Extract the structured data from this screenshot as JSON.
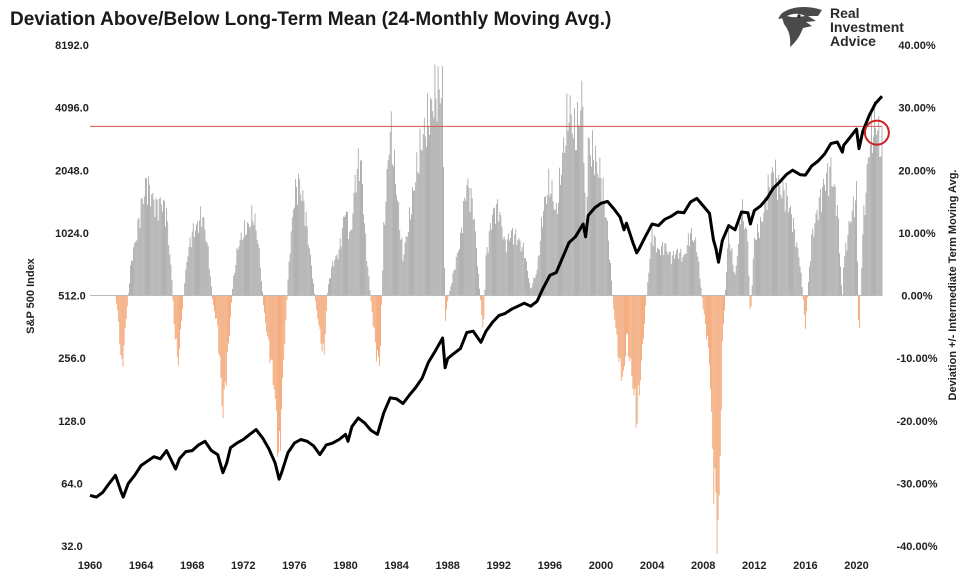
{
  "title": "Deviation Above/Below Long-Term Mean (24-Monthly Moving Avg.)",
  "logo": {
    "lines": [
      "Real",
      "Investment",
      "Advice"
    ],
    "icon": "eagle-head-icon"
  },
  "chart_data": {
    "type": "bar+line",
    "x_range": [
      1960,
      2022
    ],
    "x_ticks": [
      "1960",
      "1964",
      "1968",
      "1972",
      "1976",
      "1980",
      "1984",
      "1988",
      "1992",
      "1996",
      "2000",
      "2004",
      "2008",
      "2012",
      "2016",
      "2020"
    ],
    "left_axis": {
      "label": "S&P 500 Index",
      "scale": "log2",
      "range": [
        32,
        8192
      ],
      "ticks": [
        "8192.0",
        "4096.0",
        "2048.0",
        "1024.0",
        "512.0",
        "256.0",
        "128.0",
        "64.0",
        "32.0"
      ]
    },
    "right_axis": {
      "label": "Deviation +/- Intermediate Term Moving Avg.",
      "range": [
        -40,
        40
      ],
      "ticks": [
        "40.00%",
        "30.00%",
        "20.00%",
        "10.00%",
        "0.00%",
        "-10.00%",
        "-20.00%",
        "-30.00%",
        "-40.00%"
      ]
    },
    "colors": {
      "positive": "#999999",
      "negative": "#f0955a",
      "line": "#000000",
      "reference": "#d9534f",
      "circle": "#cc2222"
    },
    "reference_line_pct": 27,
    "highlight_circle": {
      "x": 2021.6,
      "pct": 26
    },
    "series": [
      {
        "name": "S&P 500 Index",
        "axis": "left",
        "points": [
          [
            1960.0,
            56
          ],
          [
            1960.5,
            55
          ],
          [
            1961.0,
            58
          ],
          [
            1961.5,
            64
          ],
          [
            1962.0,
            70
          ],
          [
            1962.4,
            59
          ],
          [
            1962.6,
            55
          ],
          [
            1963.0,
            64
          ],
          [
            1963.5,
            70
          ],
          [
            1964.0,
            78
          ],
          [
            1965.0,
            86
          ],
          [
            1965.5,
            84
          ],
          [
            1966.0,
            92
          ],
          [
            1966.7,
            75
          ],
          [
            1967.0,
            84
          ],
          [
            1967.5,
            91
          ],
          [
            1968.0,
            92
          ],
          [
            1968.5,
            98
          ],
          [
            1969.0,
            102
          ],
          [
            1969.5,
            92
          ],
          [
            1970.0,
            88
          ],
          [
            1970.4,
            72
          ],
          [
            1970.7,
            80
          ],
          [
            1971.0,
            95
          ],
          [
            1971.5,
            100
          ],
          [
            1972.0,
            104
          ],
          [
            1972.5,
            110
          ],
          [
            1973.0,
            116
          ],
          [
            1973.5,
            106
          ],
          [
            1974.0,
            94
          ],
          [
            1974.5,
            80
          ],
          [
            1974.8,
            67
          ],
          [
            1975.0,
            72
          ],
          [
            1975.5,
            90
          ],
          [
            1976.0,
            100
          ],
          [
            1976.5,
            104
          ],
          [
            1977.0,
            102
          ],
          [
            1977.5,
            97
          ],
          [
            1978.0,
            88
          ],
          [
            1978.5,
            98
          ],
          [
            1979.0,
            100
          ],
          [
            1979.5,
            104
          ],
          [
            1980.0,
            110
          ],
          [
            1980.2,
            102
          ],
          [
            1980.5,
            120
          ],
          [
            1981.0,
            132
          ],
          [
            1981.5,
            125
          ],
          [
            1982.0,
            115
          ],
          [
            1982.5,
            110
          ],
          [
            1983.0,
            140
          ],
          [
            1983.5,
            165
          ],
          [
            1984.0,
            163
          ],
          [
            1984.5,
            155
          ],
          [
            1985.0,
            170
          ],
          [
            1985.5,
            185
          ],
          [
            1986.0,
            205
          ],
          [
            1986.5,
            245
          ],
          [
            1987.0,
            275
          ],
          [
            1987.6,
            320
          ],
          [
            1987.8,
            230
          ],
          [
            1988.0,
            255
          ],
          [
            1988.5,
            270
          ],
          [
            1989.0,
            285
          ],
          [
            1989.5,
            340
          ],
          [
            1990.0,
            345
          ],
          [
            1990.6,
            305
          ],
          [
            1991.0,
            345
          ],
          [
            1991.5,
            380
          ],
          [
            1992.0,
            410
          ],
          [
            1992.5,
            420
          ],
          [
            1993.0,
            440
          ],
          [
            1993.5,
            455
          ],
          [
            1994.0,
            470
          ],
          [
            1994.5,
            455
          ],
          [
            1995.0,
            480
          ],
          [
            1995.5,
            560
          ],
          [
            1996.0,
            640
          ],
          [
            1996.5,
            660
          ],
          [
            1997.0,
            780
          ],
          [
            1997.5,
            920
          ],
          [
            1998.0,
            980
          ],
          [
            1998.6,
            1130
          ],
          [
            1998.8,
            980
          ],
          [
            1999.0,
            1240
          ],
          [
            1999.5,
            1350
          ],
          [
            2000.0,
            1420
          ],
          [
            2000.5,
            1450
          ],
          [
            2001.0,
            1340
          ],
          [
            2001.5,
            1220
          ],
          [
            2001.8,
            1060
          ],
          [
            2002.0,
            1140
          ],
          [
            2002.5,
            920
          ],
          [
            2002.8,
            820
          ],
          [
            2003.0,
            860
          ],
          [
            2003.5,
            990
          ],
          [
            2004.0,
            1130
          ],
          [
            2004.5,
            1110
          ],
          [
            2005.0,
            1190
          ],
          [
            2005.5,
            1230
          ],
          [
            2006.0,
            1290
          ],
          [
            2006.5,
            1280
          ],
          [
            2007.0,
            1440
          ],
          [
            2007.5,
            1500
          ],
          [
            2008.0,
            1380
          ],
          [
            2008.5,
            1270
          ],
          [
            2008.8,
            950
          ],
          [
            2009.0,
            860
          ],
          [
            2009.2,
            740
          ],
          [
            2009.5,
            940
          ],
          [
            2010.0,
            1110
          ],
          [
            2010.5,
            1060
          ],
          [
            2011.0,
            1290
          ],
          [
            2011.5,
            1280
          ],
          [
            2011.7,
            1130
          ],
          [
            2012.0,
            1310
          ],
          [
            2012.5,
            1380
          ],
          [
            2013.0,
            1500
          ],
          [
            2013.5,
            1680
          ],
          [
            2014.0,
            1800
          ],
          [
            2014.5,
            1950
          ],
          [
            2015.0,
            2050
          ],
          [
            2015.6,
            1950
          ],
          [
            2016.0,
            1940
          ],
          [
            2016.5,
            2150
          ],
          [
            2017.0,
            2270
          ],
          [
            2017.5,
            2450
          ],
          [
            2018.0,
            2750
          ],
          [
            2018.5,
            2800
          ],
          [
            2018.9,
            2500
          ],
          [
            2019.0,
            2700
          ],
          [
            2019.5,
            2950
          ],
          [
            2020.0,
            3230
          ],
          [
            2020.2,
            2600
          ],
          [
            2020.5,
            3150
          ],
          [
            2021.0,
            3750
          ],
          [
            2021.5,
            4300
          ],
          [
            2022.0,
            4650
          ]
        ]
      },
      {
        "name": "Deviation +/- Intermediate Term Moving Avg.",
        "axis": "right",
        "points": [
          [
            1962.0,
            0
          ],
          [
            1962.2,
            -3
          ],
          [
            1962.5,
            -12
          ],
          [
            1962.9,
            -2
          ],
          [
            1963.2,
            5
          ],
          [
            1963.6,
            9
          ],
          [
            1964.0,
            14
          ],
          [
            1964.4,
            18
          ],
          [
            1964.8,
            16
          ],
          [
            1965.2,
            14
          ],
          [
            1965.6,
            15
          ],
          [
            1966.0,
            13
          ],
          [
            1966.4,
            3
          ],
          [
            1966.6,
            -5
          ],
          [
            1966.9,
            -11
          ],
          [
            1967.2,
            -3
          ],
          [
            1967.6,
            6
          ],
          [
            1968.0,
            10
          ],
          [
            1968.4,
            11
          ],
          [
            1968.8,
            13
          ],
          [
            1969.2,
            8
          ],
          [
            1969.6,
            -1
          ],
          [
            1970.0,
            -5
          ],
          [
            1970.4,
            -19
          ],
          [
            1970.8,
            -9
          ],
          [
            1971.2,
            2
          ],
          [
            1971.6,
            8
          ],
          [
            1972.0,
            10
          ],
          [
            1972.4,
            11
          ],
          [
            1972.8,
            13
          ],
          [
            1973.2,
            8
          ],
          [
            1973.6,
            -2
          ],
          [
            1974.0,
            -8
          ],
          [
            1974.4,
            -14
          ],
          [
            1974.8,
            -27
          ],
          [
            1975.2,
            -9
          ],
          [
            1975.6,
            6
          ],
          [
            1976.0,
            16
          ],
          [
            1976.4,
            18
          ],
          [
            1976.8,
            14
          ],
          [
            1977.2,
            7
          ],
          [
            1977.6,
            0
          ],
          [
            1978.0,
            -6
          ],
          [
            1978.3,
            -10
          ],
          [
            1978.6,
            1
          ],
          [
            1979.0,
            5
          ],
          [
            1979.5,
            7
          ],
          [
            1980.0,
            14
          ],
          [
            1980.4,
            9
          ],
          [
            1980.8,
            19
          ],
          [
            1981.2,
            22
          ],
          [
            1981.6,
            8
          ],
          [
            1982.0,
            -1
          ],
          [
            1982.4,
            -9
          ],
          [
            1982.7,
            -11
          ],
          [
            1983.0,
            10
          ],
          [
            1983.5,
            27
          ],
          [
            1984.0,
            17
          ],
          [
            1984.5,
            6
          ],
          [
            1985.0,
            12
          ],
          [
            1985.5,
            19
          ],
          [
            1986.0,
            25
          ],
          [
            1986.5,
            28
          ],
          [
            1987.0,
            32
          ],
          [
            1987.6,
            33
          ],
          [
            1987.8,
            -4
          ],
          [
            1988.0,
            -1
          ],
          [
            1988.5,
            4
          ],
          [
            1989.0,
            9
          ],
          [
            1989.5,
            18
          ],
          [
            1990.0,
            14
          ],
          [
            1990.5,
            1
          ],
          [
            1990.8,
            -6
          ],
          [
            1991.0,
            6
          ],
          [
            1991.5,
            13
          ],
          [
            1992.0,
            14
          ],
          [
            1992.5,
            8
          ],
          [
            1993.0,
            10
          ],
          [
            1993.5,
            9
          ],
          [
            1994.0,
            7
          ],
          [
            1994.5,
            1
          ],
          [
            1995.0,
            4
          ],
          [
            1995.5,
            14
          ],
          [
            1996.0,
            18
          ],
          [
            1996.5,
            13
          ],
          [
            1997.0,
            22
          ],
          [
            1997.5,
            30
          ],
          [
            1998.0,
            25
          ],
          [
            1998.6,
            32
          ],
          [
            1998.8,
            8
          ],
          [
            1999.0,
            24
          ],
          [
            1999.5,
            22
          ],
          [
            2000.0,
            19
          ],
          [
            2000.5,
            11
          ],
          [
            2001.0,
            -2
          ],
          [
            2001.5,
            -12
          ],
          [
            2001.8,
            -13
          ],
          [
            2002.0,
            -6
          ],
          [
            2002.5,
            -14
          ],
          [
            2002.8,
            -20
          ],
          [
            2003.0,
            -15
          ],
          [
            2003.5,
            -2
          ],
          [
            2004.0,
            10
          ],
          [
            2004.5,
            7
          ],
          [
            2005.0,
            8
          ],
          [
            2005.5,
            6
          ],
          [
            2006.0,
            7
          ],
          [
            2006.5,
            6
          ],
          [
            2007.0,
            10
          ],
          [
            2007.5,
            8
          ],
          [
            2008.0,
            -2
          ],
          [
            2008.5,
            -10
          ],
          [
            2008.8,
            -28
          ],
          [
            2009.2,
            -39
          ],
          [
            2009.5,
            -8
          ],
          [
            2010.0,
            10
          ],
          [
            2010.5,
            3
          ],
          [
            2011.0,
            14
          ],
          [
            2011.5,
            9
          ],
          [
            2011.7,
            -4
          ],
          [
            2012.0,
            9
          ],
          [
            2012.5,
            11
          ],
          [
            2013.0,
            16
          ],
          [
            2013.5,
            20
          ],
          [
            2014.0,
            17
          ],
          [
            2014.5,
            16
          ],
          [
            2015.0,
            12
          ],
          [
            2015.6,
            5
          ],
          [
            2016.0,
            -5
          ],
          [
            2016.5,
            9
          ],
          [
            2017.0,
            14
          ],
          [
            2017.5,
            18
          ],
          [
            2018.0,
            20
          ],
          [
            2018.5,
            14
          ],
          [
            2018.9,
            -1
          ],
          [
            2019.0,
            5
          ],
          [
            2019.5,
            12
          ],
          [
            2020.0,
            16
          ],
          [
            2020.2,
            -8
          ],
          [
            2020.5,
            10
          ],
          [
            2021.0,
            24
          ],
          [
            2021.5,
            28
          ],
          [
            2022.0,
            23
          ]
        ]
      }
    ]
  }
}
